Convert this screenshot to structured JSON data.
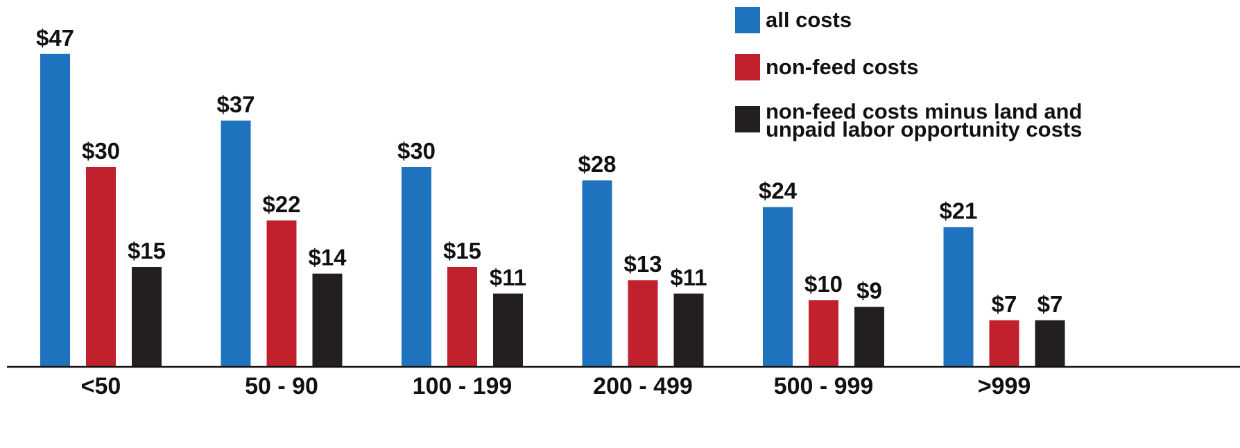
{
  "chart_data": {
    "type": "bar",
    "categories": [
      "<50",
      "50 - 90",
      "100 - 199",
      "200 - 499",
      "500 - 999",
      ">999"
    ],
    "series": [
      {
        "name": "all costs",
        "color": "#1f72bd",
        "values": [
          47,
          37,
          30,
          28,
          24,
          21
        ],
        "labels": [
          "$47",
          "$37",
          "$30",
          "$28",
          "$24",
          "$21"
        ]
      },
      {
        "name": "non-feed costs",
        "color": "#c1202d",
        "values": [
          30,
          22,
          15,
          13,
          10,
          7
        ],
        "labels": [
          "$30",
          "$22",
          "$15",
          "$13",
          "$10",
          "$7"
        ]
      },
      {
        "name": "non-feed costs minus land and unpaid labor opportunity costs",
        "legend_lines": [
          "non-feed costs minus land and",
          "unpaid labor opportunity costs"
        ],
        "color": "#231f20",
        "values": [
          15,
          14,
          11,
          11,
          9,
          7
        ],
        "labels": [
          "$15",
          "$14",
          "$11",
          "$11",
          "$9",
          "$7"
        ]
      }
    ],
    "ylim": [
      0,
      50
    ],
    "grid": false,
    "legend_position": "top-right",
    "axis_color": "#111111"
  }
}
